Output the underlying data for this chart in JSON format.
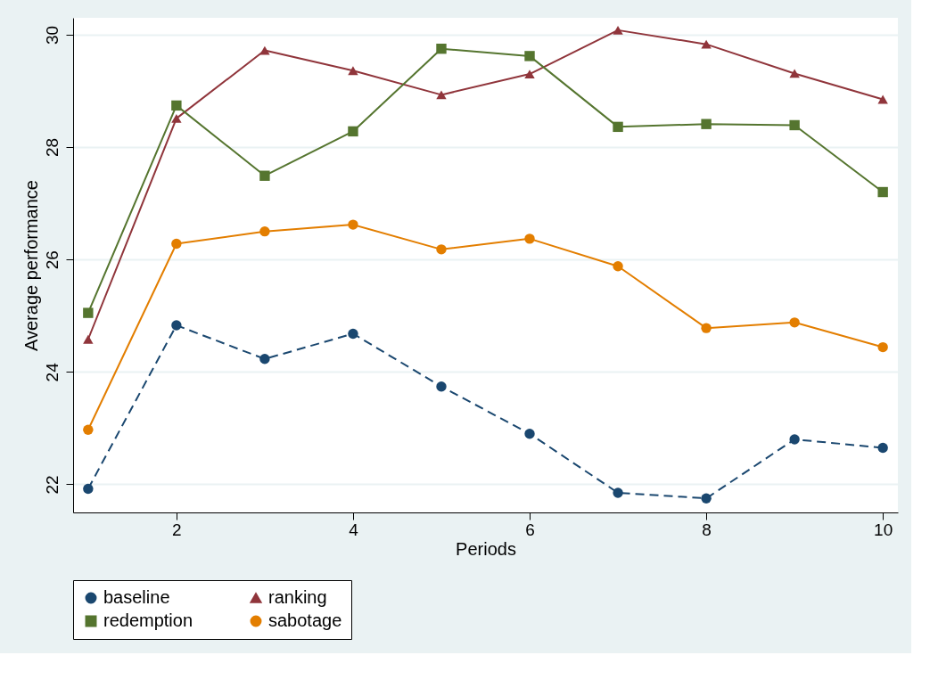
{
  "chart_data": {
    "type": "line",
    "xlabel": "Periods",
    "ylabel": "Average performance",
    "x": [
      1,
      2,
      3,
      4,
      5,
      6,
      7,
      8,
      9,
      10
    ],
    "xlim": [
      0.83,
      10.17
    ],
    "xticks": [
      2,
      4,
      6,
      8,
      10
    ],
    "ylim": [
      21.5,
      30.3
    ],
    "yticks": [
      22,
      24,
      26,
      28,
      30
    ],
    "grid": "y",
    "legend": "bottom",
    "series": [
      {
        "name": "baseline",
        "color": "#1a476f",
        "marker": "circle",
        "line_style": "dashed",
        "values": [
          21.92,
          24.83,
          24.23,
          24.68,
          23.74,
          22.9,
          21.85,
          21.75,
          22.8,
          22.65
        ]
      },
      {
        "name": "ranking",
        "color": "#90353b",
        "marker": "triangle",
        "line_style": "solid",
        "values": [
          24.58,
          28.51,
          29.72,
          29.36,
          28.93,
          29.3,
          30.08,
          29.83,
          29.31,
          28.85
        ]
      },
      {
        "name": "redemption",
        "color": "#55752f",
        "marker": "square",
        "line_style": "solid",
        "values": [
          25.05,
          28.74,
          27.49,
          28.28,
          29.75,
          29.62,
          28.36,
          28.41,
          28.39,
          27.2
        ]
      },
      {
        "name": "sabotage",
        "color": "#e37e00",
        "marker": "circle",
        "line_style": "solid",
        "values": [
          22.97,
          26.28,
          26.5,
          26.62,
          26.18,
          26.37,
          25.88,
          24.78,
          24.88,
          24.44
        ]
      }
    ]
  }
}
